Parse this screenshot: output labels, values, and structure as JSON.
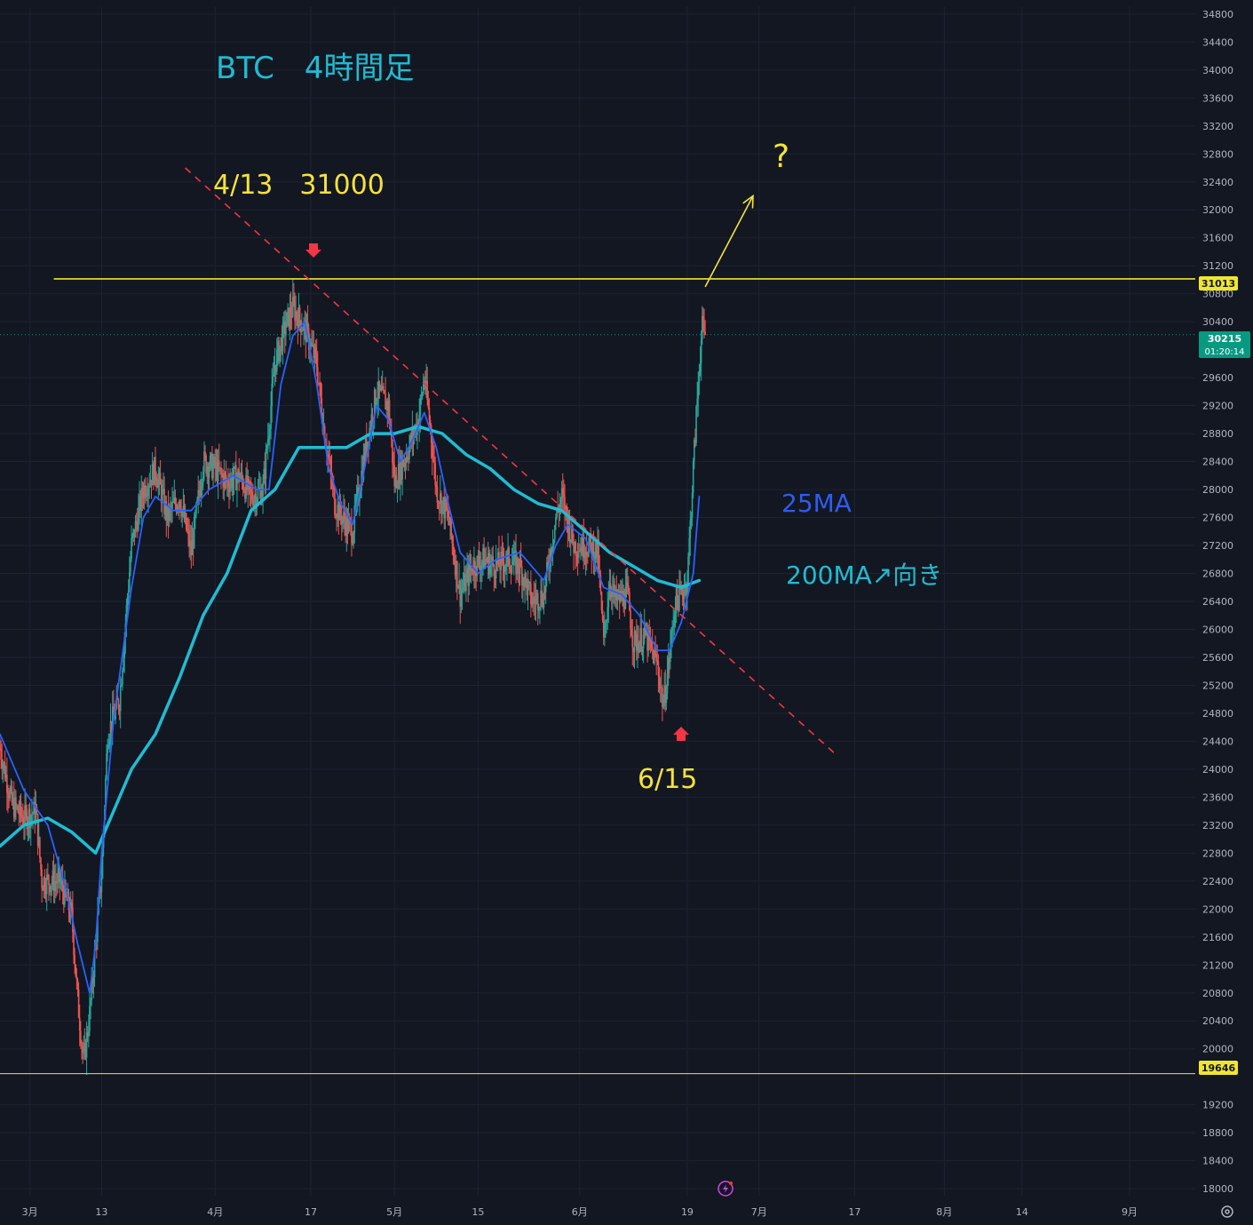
{
  "colors": {
    "background": "#131722",
    "grid": "#1f2330",
    "candle_up": "#26a69a",
    "candle_down": "#ef5350",
    "ma25": "#2962ff",
    "ma200": "#1fbcd2",
    "level_line": "#f0e630",
    "trendline": "#f23645",
    "annotation_yellow": "#f5e23b",
    "annotation_cyan": "#1fbcd2",
    "annotation_blue": "#2f5cf0",
    "arrow_red": "#f23645",
    "axis_text": "#b2b5be",
    "current_price_bg": "#089981",
    "level_tag_bg": "#f0e630"
  },
  "annotations": {
    "title": "BTC　4時間足",
    "top_label": "4/13　31000",
    "bottom_label": "6/15",
    "question": "?",
    "ma25_label": "25MA",
    "ma200_label": "200MA↗向き"
  },
  "price_tags": {
    "upper_level": "31013",
    "lower_level": "19646",
    "current_price": "30215",
    "countdown": "01:20:14"
  },
  "icons": {
    "lightning": "lightning-icon",
    "settings": "gear-icon"
  },
  "chart_data": {
    "type": "candlestick",
    "title": "BTC　4時間足",
    "y_axis": {
      "range": [
        17900,
        34900
      ],
      "ticks": [
        34800,
        34400,
        34000,
        33600,
        33200,
        32800,
        32400,
        32000,
        31600,
        31200,
        30800,
        30400,
        29600,
        29200,
        28800,
        28400,
        28000,
        27600,
        27200,
        26800,
        26400,
        26000,
        25600,
        25200,
        24800,
        24400,
        24000,
        23600,
        23200,
        22800,
        22400,
        22000,
        21600,
        21200,
        20800,
        20400,
        20000,
        19200,
        18800,
        18400,
        18000
      ]
    },
    "x_axis": {
      "range": [
        "2023-02-24",
        "2023-09-12"
      ],
      "ticks": [
        {
          "date": "2023-03-01",
          "label": "3月"
        },
        {
          "date": "2023-03-13",
          "label": "13"
        },
        {
          "date": "2023-04-01",
          "label": "4月"
        },
        {
          "date": "2023-04-17",
          "label": "17"
        },
        {
          "date": "2023-05-01",
          "label": "5月"
        },
        {
          "date": "2023-05-15",
          "label": "15"
        },
        {
          "date": "2023-06-01",
          "label": "6月"
        },
        {
          "date": "2023-06-19",
          "label": "19"
        },
        {
          "date": "2023-07-01",
          "label": "7月"
        },
        {
          "date": "2023-07-17",
          "label": "17"
        },
        {
          "date": "2023-08-01",
          "label": "8月"
        },
        {
          "date": "2023-08-14",
          "label": "14"
        },
        {
          "date": "2023-09-01",
          "label": "9月"
        }
      ]
    },
    "grid": true,
    "price_path": [
      [
        "2023-02-24",
        24300
      ],
      [
        "2023-02-26",
        23500
      ],
      [
        "2023-02-28",
        23300
      ],
      [
        "2023-03-02",
        23400
      ],
      [
        "2023-03-03",
        22400
      ],
      [
        "2023-03-06",
        22400
      ],
      [
        "2023-03-08",
        21900
      ],
      [
        "2023-03-09",
        20700
      ],
      [
        "2023-03-10",
        19800
      ],
      [
        "2023-03-11",
        20500
      ],
      [
        "2023-03-13",
        22500
      ],
      [
        "2023-03-14",
        24500
      ],
      [
        "2023-03-16",
        25000
      ],
      [
        "2023-03-18",
        27200
      ],
      [
        "2023-03-20",
        28000
      ],
      [
        "2023-03-22",
        28300
      ],
      [
        "2023-03-24",
        27600
      ],
      [
        "2023-03-26",
        27900
      ],
      [
        "2023-03-28",
        27100
      ],
      [
        "2023-03-30",
        28400
      ],
      [
        "2023-04-01",
        28300
      ],
      [
        "2023-04-03",
        28100
      ],
      [
        "2023-04-05",
        28200
      ],
      [
        "2023-04-07",
        27900
      ],
      [
        "2023-04-09",
        28000
      ],
      [
        "2023-04-11",
        29800
      ],
      [
        "2023-04-13",
        30400
      ],
      [
        "2023-04-14",
        30600
      ],
      [
        "2023-04-16",
        30300
      ],
      [
        "2023-04-18",
        29800
      ],
      [
        "2023-04-19",
        29000
      ],
      [
        "2023-04-20",
        28400
      ],
      [
        "2023-04-21",
        27800
      ],
      [
        "2023-04-23",
        27500
      ],
      [
        "2023-04-24",
        27400
      ],
      [
        "2023-04-26",
        28500
      ],
      [
        "2023-04-28",
        29400
      ],
      [
        "2023-04-30",
        29200
      ],
      [
        "2023-05-01",
        28100
      ],
      [
        "2023-05-03",
        28500
      ],
      [
        "2023-05-05",
        29000
      ],
      [
        "2023-05-06",
        29600
      ],
      [
        "2023-05-07",
        28900
      ],
      [
        "2023-05-08",
        28000
      ],
      [
        "2023-05-10",
        27600
      ],
      [
        "2023-05-12",
        26500
      ],
      [
        "2023-05-14",
        26900
      ],
      [
        "2023-05-16",
        27000
      ],
      [
        "2023-05-18",
        26900
      ],
      [
        "2023-05-20",
        27000
      ],
      [
        "2023-05-22",
        26900
      ],
      [
        "2023-05-24",
        26400
      ],
      [
        "2023-05-26",
        26500
      ],
      [
        "2023-05-28",
        27600
      ],
      [
        "2023-05-29",
        27900
      ],
      [
        "2023-05-31",
        27200
      ],
      [
        "2023-06-02",
        27200
      ],
      [
        "2023-06-04",
        27100
      ],
      [
        "2023-06-05",
        25800
      ],
      [
        "2023-06-06",
        26700
      ],
      [
        "2023-06-07",
        26400
      ],
      [
        "2023-06-09",
        26500
      ],
      [
        "2023-06-10",
        25800
      ],
      [
        "2023-06-12",
        25900
      ],
      [
        "2023-06-14",
        25500
      ],
      [
        "2023-06-15",
        24900
      ],
      [
        "2023-06-16",
        25600
      ],
      [
        "2023-06-17",
        26400
      ],
      [
        "2023-06-18",
        26500
      ],
      [
        "2023-06-19",
        26700
      ],
      [
        "2023-06-20",
        28300
      ],
      [
        "2023-06-21",
        29800
      ],
      [
        "2023-06-21T12:00",
        30300
      ],
      [
        "2023-06-22",
        30215
      ]
    ],
    "series": [
      {
        "name": "25MA",
        "values": [
          [
            "2023-02-24",
            24500
          ],
          [
            "2023-02-28",
            23700
          ],
          [
            "2023-03-04",
            23200
          ],
          [
            "2023-03-07",
            22300
          ],
          [
            "2023-03-09",
            21500
          ],
          [
            "2023-03-11",
            20800
          ],
          [
            "2023-03-12",
            21500
          ],
          [
            "2023-03-13",
            22800
          ],
          [
            "2023-03-15",
            24700
          ],
          [
            "2023-03-18",
            26600
          ],
          [
            "2023-03-20",
            27600
          ],
          [
            "2023-03-22",
            27900
          ],
          [
            "2023-03-25",
            27700
          ],
          [
            "2023-03-28",
            27700
          ],
          [
            "2023-03-31",
            28000
          ],
          [
            "2023-04-04",
            28200
          ],
          [
            "2023-04-08",
            28000
          ],
          [
            "2023-04-10",
            28000
          ],
          [
            "2023-04-12",
            29500
          ],
          [
            "2023-04-14",
            30200
          ],
          [
            "2023-04-16",
            30400
          ],
          [
            "2023-04-18",
            29500
          ],
          [
            "2023-04-20",
            28300
          ],
          [
            "2023-04-22",
            27800
          ],
          [
            "2023-04-24",
            27500
          ],
          [
            "2023-04-26",
            28300
          ],
          [
            "2023-04-28",
            29200
          ],
          [
            "2023-04-30",
            29000
          ],
          [
            "2023-05-02",
            28400
          ],
          [
            "2023-05-04",
            28700
          ],
          [
            "2023-05-06",
            29100
          ],
          [
            "2023-05-08",
            28600
          ],
          [
            "2023-05-10",
            27800
          ],
          [
            "2023-05-12",
            27100
          ],
          [
            "2023-05-15",
            26800
          ],
          [
            "2023-05-18",
            27000
          ],
          [
            "2023-05-22",
            27100
          ],
          [
            "2023-05-26",
            26700
          ],
          [
            "2023-05-28",
            27200
          ],
          [
            "2023-05-30",
            27500
          ],
          [
            "2023-06-02",
            27300
          ],
          [
            "2023-06-05",
            26600
          ],
          [
            "2023-06-08",
            26500
          ],
          [
            "2023-06-11",
            26200
          ],
          [
            "2023-06-14",
            25700
          ],
          [
            "2023-06-16",
            25700
          ],
          [
            "2023-06-18",
            26100
          ],
          [
            "2023-06-20",
            26800
          ],
          [
            "2023-06-21",
            27900
          ]
        ]
      },
      {
        "name": "200MA",
        "values": [
          [
            "2023-02-24",
            22900
          ],
          [
            "2023-02-28",
            23200
          ],
          [
            "2023-03-04",
            23300
          ],
          [
            "2023-03-08",
            23100
          ],
          [
            "2023-03-12",
            22800
          ],
          [
            "2023-03-14",
            23200
          ],
          [
            "2023-03-18",
            24000
          ],
          [
            "2023-03-22",
            24500
          ],
          [
            "2023-03-26",
            25300
          ],
          [
            "2023-03-30",
            26200
          ],
          [
            "2023-04-03",
            26800
          ],
          [
            "2023-04-07",
            27700
          ],
          [
            "2023-04-11",
            28000
          ],
          [
            "2023-04-15",
            28600
          ],
          [
            "2023-04-19",
            28600
          ],
          [
            "2023-04-23",
            28600
          ],
          [
            "2023-04-27",
            28800
          ],
          [
            "2023-05-01",
            28800
          ],
          [
            "2023-05-05",
            28900
          ],
          [
            "2023-05-09",
            28800
          ],
          [
            "2023-05-13",
            28500
          ],
          [
            "2023-05-17",
            28300
          ],
          [
            "2023-05-21",
            28000
          ],
          [
            "2023-05-25",
            27800
          ],
          [
            "2023-05-29",
            27700
          ],
          [
            "2023-06-02",
            27400
          ],
          [
            "2023-06-06",
            27100
          ],
          [
            "2023-06-10",
            26900
          ],
          [
            "2023-06-14",
            26700
          ],
          [
            "2023-06-18",
            26600
          ],
          [
            "2023-06-21",
            26700
          ]
        ]
      }
    ],
    "levels": [
      {
        "price": 31013,
        "from": "2023-03-05",
        "to": "2023-09-12"
      },
      {
        "price": 19646,
        "from": "2023-02-24",
        "to": "2023-09-12"
      }
    ],
    "trendline": {
      "start": [
        "2023-03-27",
        32600
      ],
      "end": [
        "2023-07-14",
        24200
      ]
    },
    "projection_arrow": {
      "start": [
        "2023-06-22",
        30900
      ],
      "end": [
        "2023-06-30",
        32200
      ]
    }
  }
}
